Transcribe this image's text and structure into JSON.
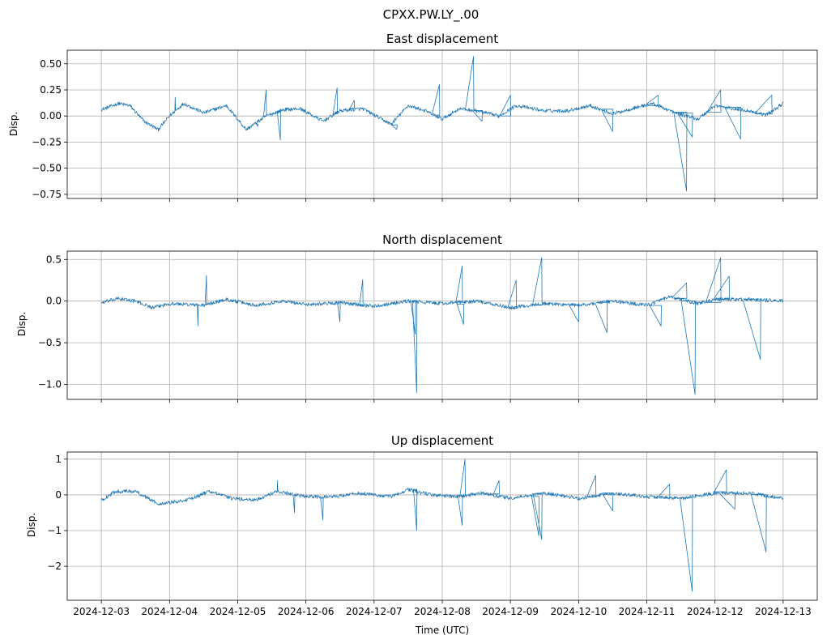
{
  "figure": {
    "suptitle": "CPXX.PW.LY_.00"
  },
  "chart_data": [
    {
      "type": "line",
      "title": "East displacement",
      "ylabel": "Disp.",
      "xlabel": "",
      "x_range": [
        "2024-12-03",
        "2024-12-13"
      ],
      "ylim": [
        -0.79,
        0.63
      ],
      "yticks": [
        0.5,
        0.25,
        0.0,
        -0.25,
        -0.5,
        -0.75
      ],
      "ytick_labels": [
        "0.50",
        "0.25",
        "0.00",
        "−0.25",
        "−0.50",
        "−0.75"
      ],
      "grid": true,
      "series": [
        {
          "color": "#1f77b4",
          "base_points": [
            [
              "2024-12-03T00:00",
              0.06
            ],
            [
              "2024-12-03T06:00",
              0.12
            ],
            [
              "2024-12-03T10:00",
              0.1
            ],
            [
              "2024-12-03T15:00",
              -0.05
            ],
            [
              "2024-12-03T20:00",
              -0.13
            ],
            [
              "2024-12-04T00:00",
              0.0
            ],
            [
              "2024-12-04T05:00",
              0.12
            ],
            [
              "2024-12-04T12:00",
              0.03
            ],
            [
              "2024-12-04T20:00",
              0.1
            ],
            [
              "2024-12-05T03:00",
              -0.13
            ],
            [
              "2024-12-05T10:00",
              0.0
            ],
            [
              "2024-12-05T16:00",
              0.06
            ],
            [
              "2024-12-05T22:00",
              0.07
            ],
            [
              "2024-12-06T06:00",
              -0.05
            ],
            [
              "2024-12-06T12:00",
              0.05
            ],
            [
              "2024-12-06T20:00",
              0.07
            ],
            [
              "2024-12-07T06:00",
              -0.08
            ],
            [
              "2024-12-07T12:00",
              0.1
            ],
            [
              "2024-12-07T18:00",
              0.05
            ],
            [
              "2024-12-08T00:00",
              -0.03
            ],
            [
              "2024-12-08T06:00",
              0.07
            ],
            [
              "2024-12-08T12:00",
              0.05
            ],
            [
              "2024-12-08T20:00",
              0.0
            ],
            [
              "2024-12-09T02:00",
              0.1
            ],
            [
              "2024-12-09T12:00",
              0.05
            ],
            [
              "2024-12-09T20:00",
              0.05
            ],
            [
              "2024-12-10T04:00",
              0.1
            ],
            [
              "2024-12-10T12:00",
              0.02
            ],
            [
              "2024-12-10T20:00",
              0.08
            ],
            [
              "2024-12-11T02:00",
              0.12
            ],
            [
              "2024-12-11T10:00",
              0.03
            ],
            [
              "2024-12-11T18:00",
              -0.03
            ],
            [
              "2024-12-12T00:00",
              0.1
            ],
            [
              "2024-12-12T06:00",
              0.07
            ],
            [
              "2024-12-12T12:00",
              0.05
            ],
            [
              "2024-12-12T18:00",
              0.01
            ],
            [
              "2024-12-13T00:00",
              0.12
            ]
          ],
          "spikes": [
            [
              "2024-12-04T02:00",
              0.18
            ],
            [
              "2024-12-05T07:00",
              -0.1
            ],
            [
              "2024-12-05T10:00",
              0.25
            ],
            [
              "2024-12-05T15:00",
              -0.23
            ],
            [
              "2024-12-06T11:00",
              0.27
            ],
            [
              "2024-12-06T17:00",
              0.15
            ],
            [
              "2024-12-07T08:00",
              -0.13
            ],
            [
              "2024-12-07T23:00",
              0.3
            ],
            [
              "2024-12-08T11:00",
              0.57
            ],
            [
              "2024-12-08T14:00",
              -0.05
            ],
            [
              "2024-12-09T00:00",
              0.2
            ],
            [
              "2024-12-10T12:00",
              -0.15
            ],
            [
              "2024-12-11T04:00",
              0.2
            ],
            [
              "2024-12-11T14:00",
              -0.72
            ],
            [
              "2024-12-11T16:00",
              -0.2
            ],
            [
              "2024-12-12T02:00",
              0.25
            ],
            [
              "2024-12-12T09:00",
              -0.22
            ],
            [
              "2024-12-12T20:00",
              0.2
            ]
          ]
        }
      ]
    },
    {
      "type": "line",
      "title": "North displacement",
      "ylabel": "Disp.",
      "xlabel": "",
      "x_range": [
        "2024-12-03",
        "2024-12-13"
      ],
      "ylim": [
        -1.18,
        0.6
      ],
      "yticks": [
        0.5,
        0.0,
        -0.5,
        -1.0
      ],
      "ytick_labels": [
        "0.5",
        "0.0",
        "−0.5",
        "−1.0"
      ],
      "grid": true,
      "series": [
        {
          "color": "#1f77b4",
          "base_points": [
            [
              "2024-12-03T00:00",
              -0.02
            ],
            [
              "2024-12-03T06:00",
              0.03
            ],
            [
              "2024-12-03T12:00",
              0.0
            ],
            [
              "2024-12-03T18:00",
              -0.08
            ],
            [
              "2024-12-04T00:00",
              -0.03
            ],
            [
              "2024-12-04T12:00",
              -0.05
            ],
            [
              "2024-12-04T20:00",
              0.02
            ],
            [
              "2024-12-05T06:00",
              -0.05
            ],
            [
              "2024-12-05T16:00",
              0.0
            ],
            [
              "2024-12-06T00:00",
              -0.04
            ],
            [
              "2024-12-06T12:00",
              -0.02
            ],
            [
              "2024-12-07T00:00",
              -0.06
            ],
            [
              "2024-12-07T12:00",
              0.0
            ],
            [
              "2024-12-08T00:00",
              -0.03
            ],
            [
              "2024-12-08T12:00",
              0.0
            ],
            [
              "2024-12-09T00:00",
              -0.08
            ],
            [
              "2024-12-09T12:00",
              -0.03
            ],
            [
              "2024-12-10T00:00",
              -0.05
            ],
            [
              "2024-12-10T12:00",
              0.0
            ],
            [
              "2024-12-11T00:00",
              -0.05
            ],
            [
              "2024-12-11T08:00",
              0.05
            ],
            [
              "2024-12-11T18:00",
              -0.03
            ],
            [
              "2024-12-12T00:00",
              0.02
            ],
            [
              "2024-12-12T12:00",
              0.02
            ],
            [
              "2024-12-13T00:00",
              0.0
            ]
          ],
          "spikes": [
            [
              "2024-12-04T10:00",
              -0.3
            ],
            [
              "2024-12-04T13:00",
              0.31
            ],
            [
              "2024-12-06T12:00",
              -0.25
            ],
            [
              "2024-12-06T20:00",
              0.26
            ],
            [
              "2024-12-07T15:00",
              -1.1
            ],
            [
              "2024-12-07T14:30",
              -0.4
            ],
            [
              "2024-12-08T07:00",
              0.42
            ],
            [
              "2024-12-08T07:30",
              -0.28
            ],
            [
              "2024-12-09T02:00",
              0.25
            ],
            [
              "2024-12-09T11:00",
              0.52
            ],
            [
              "2024-12-10T00:00",
              -0.25
            ],
            [
              "2024-12-10T10:00",
              -0.38
            ],
            [
              "2024-12-11T05:00",
              -0.3
            ],
            [
              "2024-12-11T14:00",
              0.22
            ],
            [
              "2024-12-11T17:00",
              -1.12
            ],
            [
              "2024-12-12T02:00",
              0.52
            ],
            [
              "2024-12-12T05:00",
              0.3
            ],
            [
              "2024-12-12T16:00",
              -0.7
            ]
          ]
        }
      ]
    },
    {
      "type": "line",
      "title": "Up displacement",
      "ylabel": "Disp.",
      "xlabel": "Time (UTC)",
      "x_range": [
        "2024-12-03",
        "2024-12-13"
      ],
      "ylim": [
        -2.95,
        1.2
      ],
      "yticks": [
        1,
        0,
        -1,
        -2
      ],
      "ytick_labels": [
        "1",
        "0",
        "−1",
        "−2"
      ],
      "grid": true,
      "xticks": [
        "2024-12-03",
        "2024-12-04",
        "2024-12-05",
        "2024-12-06",
        "2024-12-07",
        "2024-12-08",
        "2024-12-09",
        "2024-12-10",
        "2024-12-11",
        "2024-12-12",
        "2024-12-13"
      ],
      "series": [
        {
          "color": "#1f77b4",
          "base_points": [
            [
              "2024-12-03T00:00",
              -0.15
            ],
            [
              "2024-12-03T05:00",
              0.1
            ],
            [
              "2024-12-03T12:00",
              0.1
            ],
            [
              "2024-12-03T20:00",
              -0.25
            ],
            [
              "2024-12-04T06:00",
              -0.15
            ],
            [
              "2024-12-04T14:00",
              0.1
            ],
            [
              "2024-12-04T22:00",
              -0.1
            ],
            [
              "2024-12-05T06:00",
              -0.15
            ],
            [
              "2024-12-05T14:00",
              0.1
            ],
            [
              "2024-12-06T00:00",
              -0.05
            ],
            [
              "2024-12-06T10:00",
              -0.05
            ],
            [
              "2024-12-06T18:00",
              0.05
            ],
            [
              "2024-12-07T06:00",
              -0.05
            ],
            [
              "2024-12-07T12:00",
              0.15
            ],
            [
              "2024-12-07T20:00",
              0.0
            ],
            [
              "2024-12-08T06:00",
              -0.05
            ],
            [
              "2024-12-08T14:00",
              0.05
            ],
            [
              "2024-12-09T00:00",
              -0.1
            ],
            [
              "2024-12-09T12:00",
              0.05
            ],
            [
              "2024-12-10T00:00",
              -0.1
            ],
            [
              "2024-12-10T12:00",
              0.05
            ],
            [
              "2024-12-11T00:00",
              -0.05
            ],
            [
              "2024-12-11T12:00",
              -0.1
            ],
            [
              "2024-12-12T00:00",
              0.05
            ],
            [
              "2024-12-12T12:00",
              0.05
            ],
            [
              "2024-12-13T00:00",
              -0.1
            ]
          ],
          "spikes": [
            [
              "2024-12-05T14:00",
              0.4
            ],
            [
              "2024-12-05T20:00",
              -0.5
            ],
            [
              "2024-12-06T06:00",
              -0.7
            ],
            [
              "2024-12-07T15:00",
              -1.0
            ],
            [
              "2024-12-08T07:00",
              -0.85
            ],
            [
              "2024-12-08T08:00",
              1.0
            ],
            [
              "2024-12-08T20:00",
              0.4
            ],
            [
              "2024-12-09T10:00",
              -1.15
            ],
            [
              "2024-12-09T11:00",
              -1.25
            ],
            [
              "2024-12-10T06:00",
              0.55
            ],
            [
              "2024-12-10T12:00",
              -0.45
            ],
            [
              "2024-12-11T08:00",
              0.3
            ],
            [
              "2024-12-11T16:00",
              -2.7
            ],
            [
              "2024-12-12T04:00",
              0.7
            ],
            [
              "2024-12-12T07:00",
              -0.4
            ],
            [
              "2024-12-12T18:00",
              -1.6
            ]
          ]
        }
      ]
    }
  ]
}
